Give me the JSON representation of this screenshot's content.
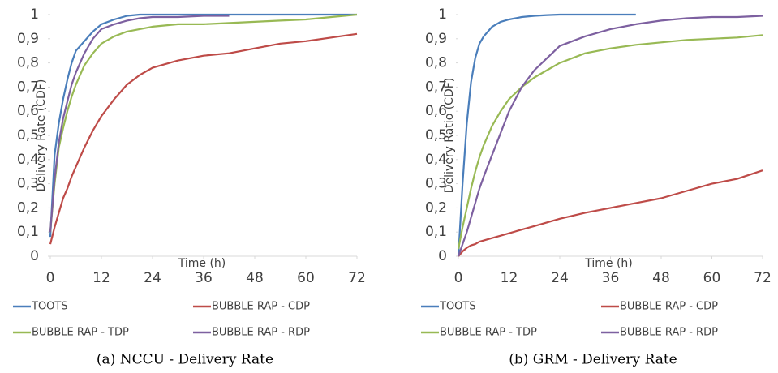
{
  "chart_data": [
    {
      "type": "line",
      "caption": "(a) NCCU - Delivery Rate",
      "xlabel": "Time (h)",
      "ylabel": "Delivery Rate (CDF)",
      "x": [
        0,
        1,
        2,
        3,
        4,
        5,
        6,
        8,
        10,
        12,
        15,
        18,
        21,
        24,
        30,
        36,
        42,
        48,
        54,
        60,
        66,
        72
      ],
      "series": [
        {
          "name": "TOOTS",
          "color": "#4a7ebb",
          "values": [
            0.08,
            0.42,
            0.55,
            0.65,
            0.73,
            0.8,
            0.85,
            0.89,
            0.93,
            0.96,
            0.98,
            0.995,
            1,
            1,
            1,
            1,
            1,
            1,
            1,
            1,
            1,
            1
          ]
        },
        {
          "name": "BUBBLE RAP - CDP",
          "color": "#be4b48",
          "values": [
            0.05,
            0.12,
            0.18,
            0.24,
            0.28,
            0.33,
            0.37,
            0.45,
            0.52,
            0.58,
            0.65,
            0.71,
            0.75,
            0.78,
            0.81,
            0.83,
            0.84,
            0.86,
            0.88,
            0.89,
            0.905,
            0.92
          ]
        },
        {
          "name": "BUBBLE RAP - TDP",
          "color": "#98b954",
          "values": [
            0.1,
            0.3,
            0.45,
            0.53,
            0.6,
            0.66,
            0.71,
            0.79,
            0.84,
            0.88,
            0.91,
            0.93,
            0.94,
            0.95,
            0.96,
            0.96,
            0.965,
            0.97,
            0.975,
            0.98,
            0.99,
            1
          ]
        },
        {
          "name": "BUBBLE RAP - RDP",
          "color": "#7d60a0",
          "values": [
            0.1,
            0.32,
            0.47,
            0.57,
            0.64,
            0.71,
            0.76,
            0.84,
            0.9,
            0.94,
            0.96,
            0.975,
            0.985,
            0.99,
            0.99,
            0.995,
            0.995,
            null,
            null,
            null,
            null,
            null
          ]
        }
      ],
      "xlim": [
        0,
        72
      ],
      "xticks": [
        0,
        12,
        24,
        36,
        48,
        60,
        72
      ],
      "ylim": [
        0,
        1
      ],
      "yticks": [
        0,
        {
          "value": 0.1,
          "label": "0,1"
        },
        {
          "value": 0.2,
          "label": "0,2"
        },
        {
          "value": 0.3,
          "label": "0,3"
        },
        {
          "value": 0.4,
          "label": "0,4"
        },
        {
          "value": 0.5,
          "label": "0,5"
        },
        {
          "value": 0.6,
          "label": "0,6"
        },
        {
          "value": 0.7,
          "label": "0,7"
        },
        {
          "value": 0.8,
          "label": "0,8"
        },
        {
          "value": 0.9,
          "label": "0,9"
        },
        1
      ]
    },
    {
      "type": "line",
      "caption": "(b) GRM - Delivery Rate",
      "xlabel": "Time (h)",
      "ylabel": "Delivery Ratio (CDF)",
      "x": [
        0,
        1,
        2,
        3,
        4,
        5,
        6,
        8,
        10,
        12,
        15,
        18,
        21,
        24,
        30,
        36,
        42,
        48,
        54,
        60,
        66,
        72
      ],
      "series": [
        {
          "name": "TOOTS",
          "color": "#4a7ebb",
          "values": [
            0,
            0.3,
            0.55,
            0.72,
            0.82,
            0.88,
            0.91,
            0.95,
            0.97,
            0.98,
            0.99,
            0.995,
            0.998,
            1,
            1,
            1,
            1,
            null,
            null,
            null,
            null,
            null
          ]
        },
        {
          "name": "BUBBLE RAP - CDP",
          "color": "#be4b48",
          "values": [
            0,
            0.02,
            0.035,
            0.045,
            0.05,
            0.06,
            0.065,
            0.075,
            0.085,
            0.095,
            0.11,
            0.125,
            0.14,
            0.155,
            0.18,
            0.2,
            0.22,
            0.24,
            0.27,
            0.3,
            0.32,
            0.355
          ]
        },
        {
          "name": "BUBBLE RAP - TDP",
          "color": "#98b954",
          "values": [
            0.03,
            0.12,
            0.2,
            0.28,
            0.35,
            0.41,
            0.46,
            0.54,
            0.6,
            0.65,
            0.7,
            0.74,
            0.77,
            0.8,
            0.84,
            0.86,
            0.875,
            0.885,
            0.895,
            0.9,
            0.905,
            0.915
          ]
        },
        {
          "name": "BUBBLE RAP - RDP",
          "color": "#7d60a0",
          "values": [
            0,
            0.05,
            0.1,
            0.16,
            0.22,
            0.28,
            0.33,
            0.42,
            0.51,
            0.6,
            0.7,
            0.77,
            0.82,
            0.87,
            0.91,
            0.94,
            0.96,
            0.975,
            0.985,
            0.99,
            0.99,
            0.995
          ]
        }
      ],
      "xlim": [
        0,
        72
      ],
      "xticks": [
        0,
        12,
        24,
        36,
        48,
        60,
        72
      ],
      "ylim": [
        0,
        1
      ],
      "yticks": [
        0,
        {
          "value": 0.1,
          "label": "0,1"
        },
        {
          "value": 0.2,
          "label": "0,2"
        },
        {
          "value": 0.3,
          "label": "0,3"
        },
        {
          "value": 0.4,
          "label": "0,4"
        },
        {
          "value": 0.5,
          "label": "0,5"
        },
        {
          "value": 0.6,
          "label": "0,6"
        },
        {
          "value": 0.7,
          "label": "0,7"
        },
        {
          "value": 0.8,
          "label": "0,8"
        },
        {
          "value": 0.9,
          "label": "0,9"
        },
        1
      ]
    }
  ]
}
